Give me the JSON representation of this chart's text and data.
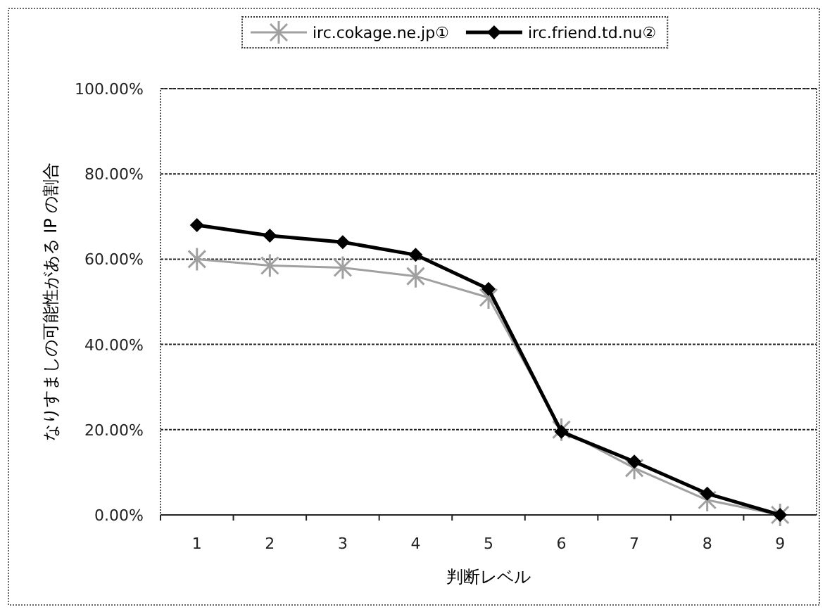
{
  "chart_data": {
    "type": "line",
    "xlabel": "判断レベル",
    "ylabel": "なりすましの可能性がある IP の割合",
    "categories": [
      "1",
      "2",
      "3",
      "4",
      "5",
      "6",
      "7",
      "8",
      "9"
    ],
    "series": [
      {
        "name": "irc.cokage.ne.jp①",
        "color": "#a0a0a0",
        "marker": "cross",
        "values": [
          60,
          58.5,
          58,
          56,
          51,
          20,
          11,
          3.5,
          0
        ]
      },
      {
        "name": "irc.friend.td.nu②",
        "color": "#000000",
        "marker": "diamond",
        "values": [
          68,
          65.5,
          64,
          61,
          53,
          19.5,
          12.5,
          5,
          0
        ]
      }
    ],
    "ylim": [
      0,
      100
    ],
    "yticks": [
      {
        "value": 0,
        "label": "0.00%"
      },
      {
        "value": 20,
        "label": "20.00%"
      },
      {
        "value": 40,
        "label": "40.00%"
      },
      {
        "value": 60,
        "label": "60.00%"
      },
      {
        "value": 80,
        "label": "80.00%"
      },
      {
        "value": 100,
        "label": "100.00%"
      }
    ],
    "grid": "y",
    "legend": "top"
  }
}
